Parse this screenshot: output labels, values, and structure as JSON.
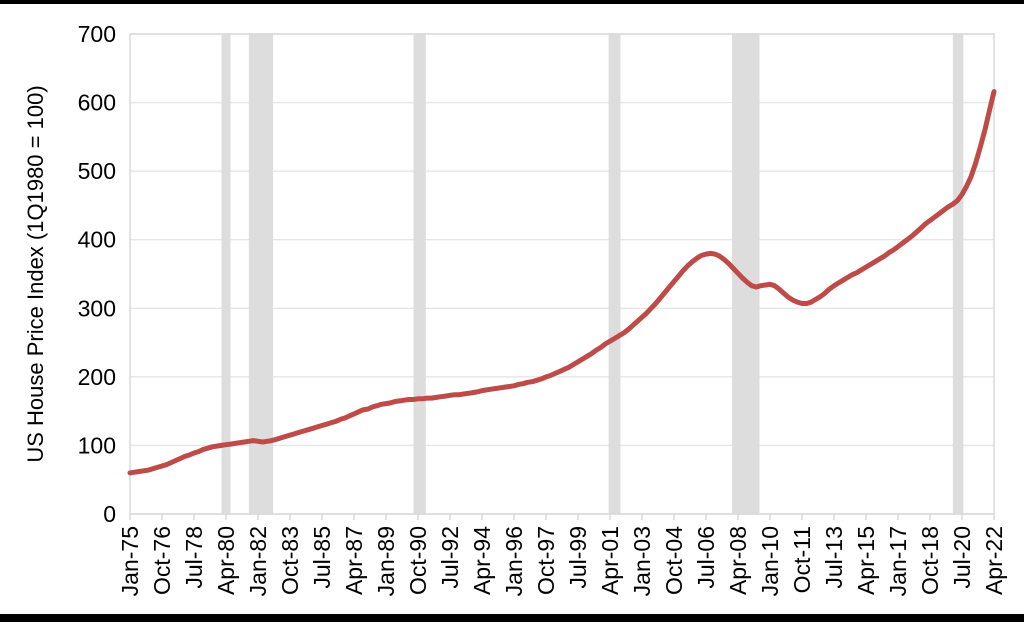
{
  "page": {
    "background": "#FFFFFF",
    "top_border_color": "#000000",
    "bottom_border_color": "#000000"
  },
  "style": {
    "line_color": "#BE4B48",
    "recession_band_color": "#DDDDDD",
    "gridline_color": "#E6E6E6",
    "plot_border_color": "#D9D9D9",
    "tick_mark_color": "#D9D9D9",
    "text_color": "#000000"
  },
  "chart_data": {
    "type": "line",
    "title": "",
    "xlabel": "",
    "ylabel": "US House Price Index (1Q1980 = 100)",
    "ylim": [
      0,
      700
    ],
    "yticks": [
      0,
      100,
      200,
      300,
      400,
      500,
      600,
      700
    ],
    "grid": "horizontal",
    "legend_position": "none",
    "x_frequency": "quarterly",
    "x_start_label": "Jan-75",
    "x_end_label": "Apr-22",
    "x_tick_interval_quarters": 7,
    "x_tick_labels": [
      "Jan-75",
      "Oct-76",
      "Jul-78",
      "Apr-80",
      "Jan-82",
      "Oct-83",
      "Jul-85",
      "Apr-87",
      "Jan-89",
      "Oct-90",
      "Jul-92",
      "Apr-94",
      "Jan-96",
      "Oct-97",
      "Jul-99",
      "Apr-01",
      "Jan-03",
      "Oct-04",
      "Jul-06",
      "Apr-08",
      "Jan-10",
      "Oct-11",
      "Jul-13",
      "Apr-15",
      "Jan-17",
      "Oct-18",
      "Jul-20",
      "Apr-22"
    ],
    "recession_bands": {
      "color": "#DDDDDD",
      "unit": "quarter_index_from_Jan-75",
      "ranges": [
        [
          20,
          22
        ],
        [
          26,
          31.3
        ],
        [
          62,
          64.7
        ],
        [
          104.7,
          107.3
        ],
        [
          131.7,
          137.7
        ],
        [
          180,
          182.3
        ]
      ]
    },
    "series": [
      {
        "name": "US House Price Index (1Q1980 = 100)",
        "color": "#BE4B48",
        "values": [
          60,
          61,
          62,
          63,
          64,
          66,
          68,
          70,
          72,
          75,
          78,
          81,
          84,
          86,
          89,
          91,
          94,
          96,
          98,
          99,
          100,
          101,
          102,
          103,
          104,
          105,
          106,
          107,
          106,
          105,
          106,
          107,
          109,
          111,
          113,
          115,
          117,
          119,
          121,
          123,
          125,
          127,
          129,
          131,
          133,
          135,
          138,
          140,
          143,
          146,
          149,
          152,
          153,
          156,
          158,
          160,
          161,
          162,
          164,
          165,
          166,
          167,
          167,
          168,
          168,
          169,
          169,
          170,
          171,
          172,
          173,
          174,
          174,
          175,
          176,
          177,
          178,
          180,
          181,
          182,
          183,
          184,
          185,
          186,
          187,
          189,
          190,
          192,
          193,
          195,
          197,
          200,
          202,
          205,
          208,
          211,
          214,
          218,
          222,
          226,
          230,
          234,
          239,
          243,
          248,
          252,
          256,
          260,
          264,
          269,
          275,
          281,
          287,
          293,
          300,
          307,
          315,
          323,
          331,
          339,
          347,
          355,
          362,
          368,
          373,
          377,
          379,
          380,
          379,
          376,
          371,
          365,
          358,
          351,
          344,
          338,
          333,
          331,
          333,
          334,
          335,
          333,
          328,
          322,
          316,
          312,
          309,
          307,
          307,
          309,
          313,
          317,
          322,
          328,
          333,
          337,
          341,
          345,
          349,
          352,
          356,
          360,
          364,
          368,
          372,
          376,
          381,
          385,
          390,
          395,
          400,
          405,
          411,
          417,
          423,
          428,
          433,
          438,
          443,
          448,
          452,
          457,
          466,
          478,
          492,
          512,
          535,
          560,
          588,
          616
        ]
      }
    ]
  }
}
